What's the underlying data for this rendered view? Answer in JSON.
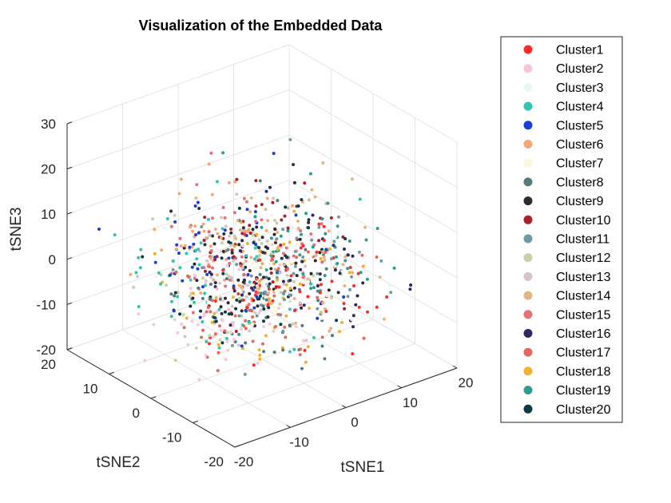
{
  "chart_data": {
    "type": "scatter",
    "title": "Visualization of the Embedded Data",
    "xlabel": "tSNE1",
    "ylabel": "tSNE2",
    "zlabel": "tSNE3",
    "xlim": [
      -20,
      20
    ],
    "ylim": [
      -20,
      20
    ],
    "zlim": [
      -20,
      30
    ],
    "xticks": [
      "-20",
      "-10",
      "0",
      "10",
      "20"
    ],
    "yticks": [
      "-20",
      "-10",
      "0",
      "10",
      "20"
    ],
    "zticks": [
      "-20",
      "-10",
      "0",
      "10",
      "20",
      "30"
    ],
    "grid": true,
    "legend_position": "outside-right",
    "series": [
      {
        "name": "Cluster1",
        "color": "#ff2a2a"
      },
      {
        "name": "Cluster2",
        "color": "#f5c8d8"
      },
      {
        "name": "Cluster3",
        "color": "#e6f7f4"
      },
      {
        "name": "Cluster4",
        "color": "#33c4b0"
      },
      {
        "name": "Cluster5",
        "color": "#1a3fd6"
      },
      {
        "name": "Cluster6",
        "color": "#f2a878"
      },
      {
        "name": "Cluster7",
        "color": "#fbf6dc"
      },
      {
        "name": "Cluster8",
        "color": "#56797a"
      },
      {
        "name": "Cluster9",
        "color": "#2e2a2b"
      },
      {
        "name": "Cluster10",
        "color": "#a8202a"
      },
      {
        "name": "Cluster11",
        "color": "#6e9ba3"
      },
      {
        "name": "Cluster12",
        "color": "#c8d0a8"
      },
      {
        "name": "Cluster13",
        "color": "#d6c3cc"
      },
      {
        "name": "Cluster14",
        "color": "#e3b485"
      },
      {
        "name": "Cluster15",
        "color": "#e5707b"
      },
      {
        "name": "Cluster16",
        "color": "#2d2a5c"
      },
      {
        "name": "Cluster17",
        "color": "#e06a5c"
      },
      {
        "name": "Cluster18",
        "color": "#f0b030"
      },
      {
        "name": "Cluster19",
        "color": "#2f9c8e"
      },
      {
        "name": "Cluster20",
        "color": "#0f3a44"
      }
    ]
  }
}
